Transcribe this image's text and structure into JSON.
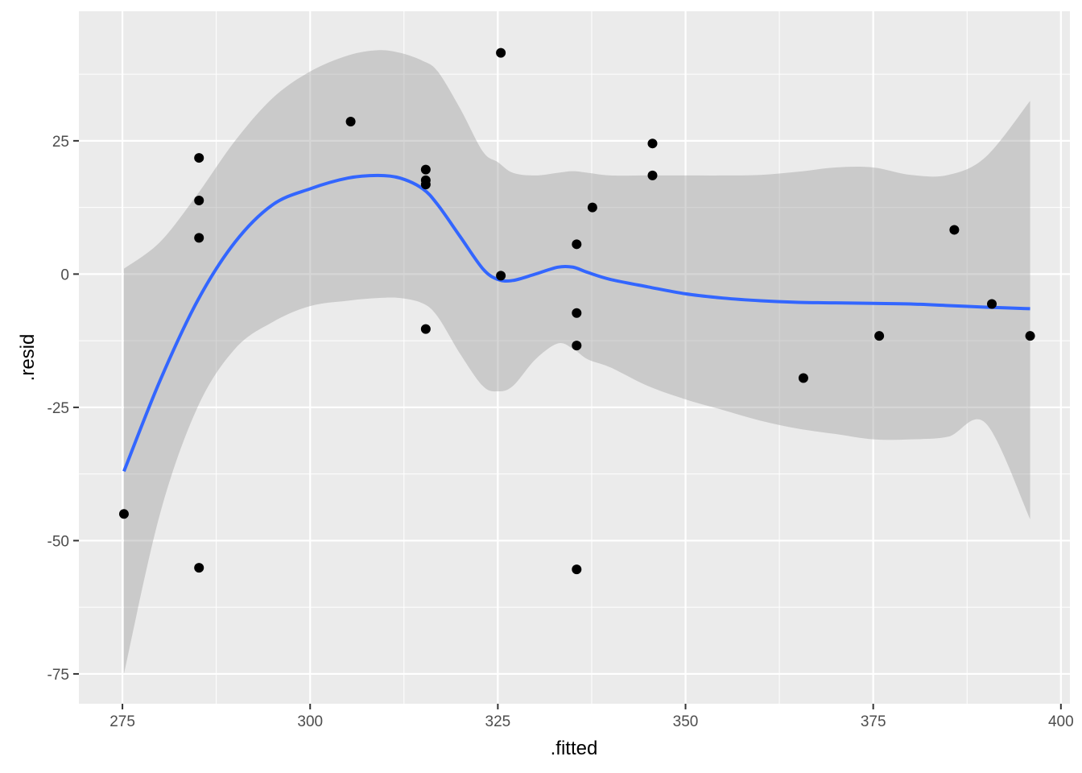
{
  "chart_data": {
    "type": "scatter",
    "xlabel": ".fitted",
    "ylabel": ".resid",
    "xlim": [
      269.2,
      401.2
    ],
    "ylim": [
      -80.6,
      49.3
    ],
    "x_ticks": [
      275,
      300,
      325,
      350,
      375,
      400
    ],
    "x_tick_labels": [
      "275",
      "300",
      "325",
      "350",
      "375",
      "400"
    ],
    "y_ticks": [
      -75,
      -50,
      -25,
      0,
      25
    ],
    "y_tick_labels": [
      "-75",
      "-50",
      "-25",
      "0",
      "25"
    ],
    "grid": true,
    "colors": {
      "panel": "#ebebeb",
      "grid": "#ffffff",
      "points": "#000000",
      "smooth_line": "#3366ff",
      "ribbon": "#999999"
    },
    "points": [
      {
        "x": 275.2,
        "y": -45.0
      },
      {
        "x": 285.2,
        "y": 21.8
      },
      {
        "x": 285.2,
        "y": 13.8
      },
      {
        "x": 285.2,
        "y": 6.8
      },
      {
        "x": 285.2,
        "y": -55.1
      },
      {
        "x": 305.4,
        "y": 28.6
      },
      {
        "x": 315.4,
        "y": 19.6
      },
      {
        "x": 315.4,
        "y": 17.6
      },
      {
        "x": 315.4,
        "y": 16.8
      },
      {
        "x": 315.4,
        "y": -10.3
      },
      {
        "x": 325.4,
        "y": 41.5
      },
      {
        "x": 325.4,
        "y": -0.3
      },
      {
        "x": 335.5,
        "y": 5.6
      },
      {
        "x": 335.5,
        "y": -7.3
      },
      {
        "x": 335.5,
        "y": -13.4
      },
      {
        "x": 335.5,
        "y": -55.4
      },
      {
        "x": 337.6,
        "y": 12.5
      },
      {
        "x": 345.6,
        "y": 24.5
      },
      {
        "x": 345.6,
        "y": 18.5
      },
      {
        "x": 365.7,
        "y": -19.5
      },
      {
        "x": 375.8,
        "y": -11.6
      },
      {
        "x": 385.8,
        "y": 8.3
      },
      {
        "x": 390.8,
        "y": -5.6
      },
      {
        "x": 395.9,
        "y": -11.6
      }
    ],
    "smooth": {
      "method": "loess",
      "x": [
        275.2,
        280,
        285,
        290,
        295,
        300,
        305,
        309,
        312,
        315,
        317,
        320,
        323,
        325,
        327,
        330,
        333,
        335,
        337,
        340,
        345,
        350,
        355,
        360,
        365,
        370,
        375,
        380,
        385,
        390,
        395.9
      ],
      "y": [
        -37,
        -20,
        -5,
        6,
        13,
        16,
        18,
        18.5,
        18,
        16,
        13,
        7,
        1,
        -1,
        -1.2,
        0,
        1.3,
        1.3,
        0.3,
        -1,
        -2.4,
        -3.7,
        -4.5,
        -5,
        -5.3,
        -5.4,
        -5.5,
        -5.6,
        -5.9,
        -6.2,
        -6.5
      ],
      "ymin": [
        -75,
        -45,
        -25,
        -14,
        -9,
        -6,
        -5,
        -4.5,
        -4.5,
        -5.5,
        -8,
        -15,
        -21,
        -22,
        -21,
        -16,
        -13,
        -14,
        -16,
        -17.5,
        -21,
        -23.5,
        -25.5,
        -27.5,
        -29,
        -30,
        -31,
        -31,
        -30.5,
        -28,
        -46
      ],
      "ymax": [
        1,
        6,
        15,
        25,
        33,
        38,
        41,
        42,
        41.5,
        40,
        38,
        31,
        23,
        21,
        19,
        18.5,
        19,
        19.3,
        19,
        18.5,
        18.5,
        18.5,
        18.5,
        18.6,
        19.2,
        20,
        20,
        18.6,
        18.6,
        22,
        32.5
      ]
    }
  }
}
